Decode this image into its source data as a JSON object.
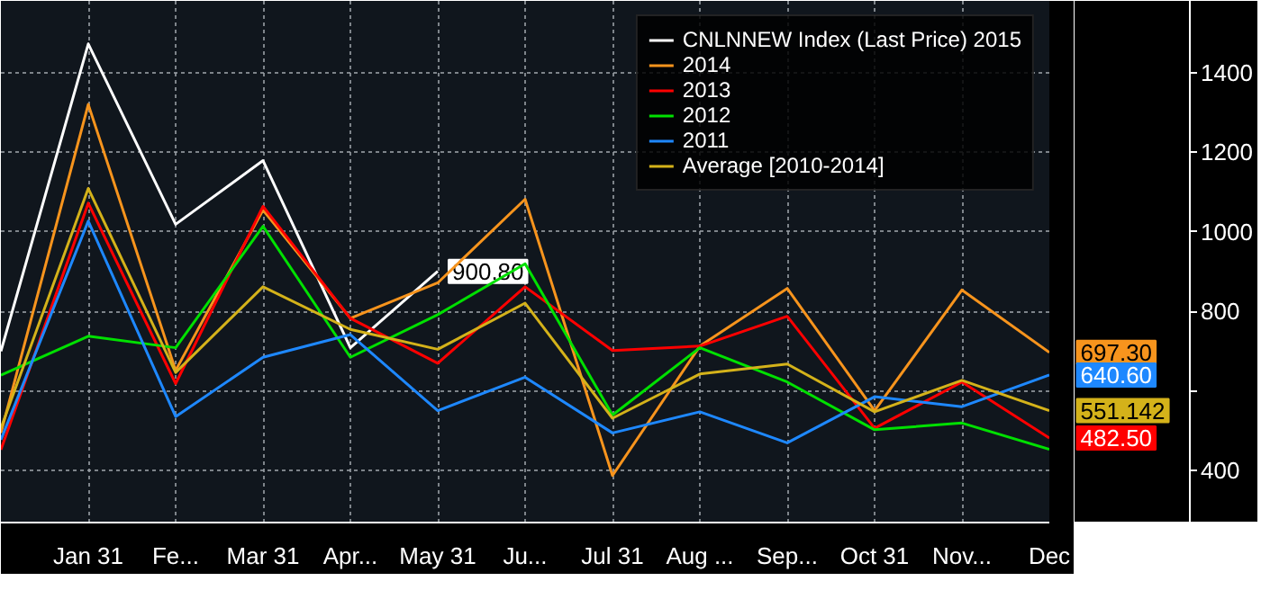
{
  "chart_data": {
    "type": "line",
    "categories": [
      null,
      "Jan 31",
      "Fe...",
      "Mar 31",
      "Apr...",
      "May 31",
      "Ju...",
      "Jul 31",
      "Aug ...",
      "Sep...",
      "Oct 31",
      "Nov...",
      "Dec"
    ],
    "ylim": [
      270,
      1580
    ],
    "yticks": [
      400,
      {
        "value": 600,
        "label": null
      },
      800,
      1000,
      1200,
      1400
    ],
    "grid": true,
    "legend": "top right",
    "series": [
      {
        "name": "CNLNNEW Index (Last Price) 2015",
        "color": "#ffffff",
        "values": [
          700,
          1472,
          1019,
          1179,
          709,
          900.8,
          null,
          null,
          null,
          null,
          null,
          null,
          null
        ],
        "value_labels": [
          null,
          null,
          null,
          null,
          null,
          "900.80",
          null,
          null,
          null,
          null,
          null,
          null,
          null
        ]
      },
      {
        "name": "2014",
        "color": "#f7941d",
        "values": [
          495,
          1320,
          652,
          1055,
          783,
          872,
          1082,
          388,
          713,
          858,
          551,
          854,
          697.3
        ],
        "value_labels": [
          null,
          null,
          null,
          null,
          null,
          null,
          null,
          null,
          null,
          null,
          null,
          null,
          "697.30"
        ]
      },
      {
        "name": "2013",
        "color": "#ff0000",
        "values": [
          453,
          1072,
          619,
          1064,
          783,
          670,
          862,
          702,
          713,
          788,
          507,
          623,
          482.5
        ],
        "value_labels": [
          null,
          null,
          null,
          null,
          null,
          null,
          null,
          null,
          null,
          null,
          null,
          null,
          "482.50"
        ]
      },
      {
        "name": "2012",
        "color": "#00e000",
        "values": [
          640,
          738,
          709,
          1014,
          685,
          792,
          920,
          540,
          709,
          623,
          503,
          520,
          454
        ]
      },
      {
        "name": "2011",
        "color": "#1e88ff",
        "values": [
          478,
          1027,
          536,
          685,
          742,
          551,
          635,
          495,
          548,
          470,
          586,
          561,
          640.6
        ],
        "value_labels": [
          null,
          null,
          null,
          null,
          null,
          null,
          null,
          null,
          null,
          null,
          null,
          null,
          "640.60"
        ]
      },
      {
        "name": "Average [2010-2014]",
        "color": "#d4b21a",
        "values": [
          507,
          1109,
          647,
          862,
          755,
          705,
          821,
          532,
          643,
          668,
          548,
          627,
          551.142
        ],
        "value_labels": [
          null,
          null,
          null,
          null,
          null,
          null,
          null,
          null,
          null,
          null,
          null,
          null,
          "551.142"
        ]
      }
    ]
  }
}
